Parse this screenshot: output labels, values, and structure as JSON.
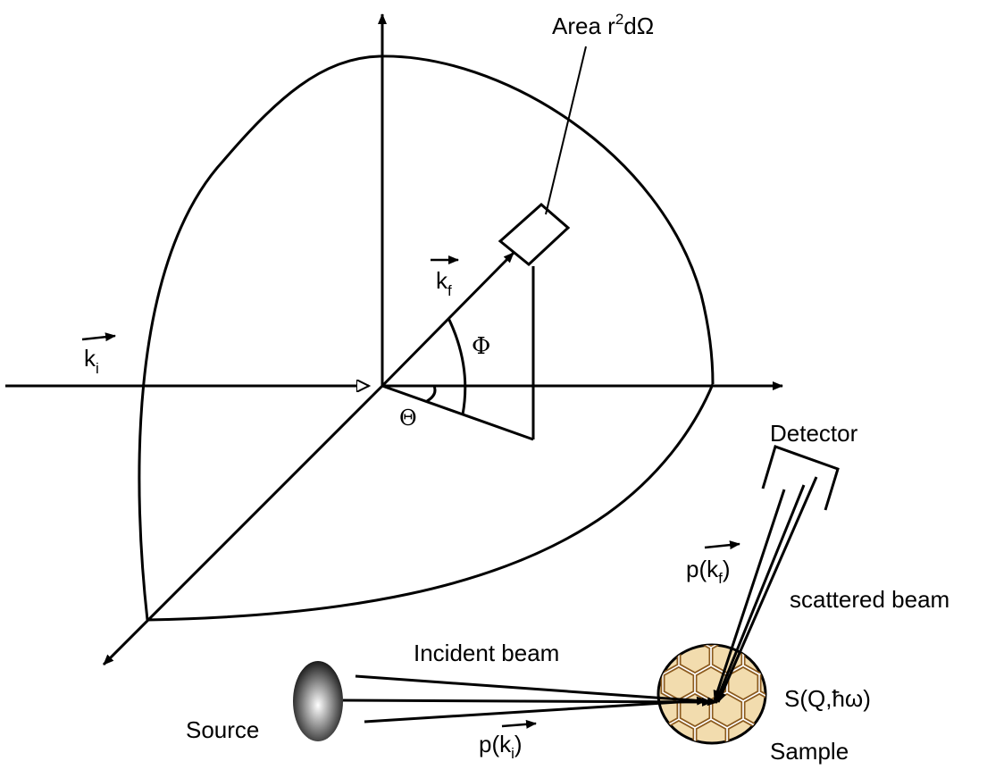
{
  "labels": {
    "area": "Area r",
    "area_sup": "2",
    "area_tail": "dΩ",
    "kf_base": "k",
    "kf_sub": "f",
    "ki_base": "k",
    "ki_sub": "i",
    "phi": "Φ",
    "theta": "Θ",
    "detector": "Detector",
    "p_kf_prefix": "p(",
    "p_kf_base": "k",
    "p_kf_sub": "f",
    "p_kf_suffix": ")",
    "scattered_beam": "scattered beam",
    "incident_beam": "Incident beam",
    "s_q_prefix": "S(Q,",
    "s_q_hbar": "ħ",
    "s_q_suffix": "ω)",
    "source": "Source",
    "p_ki_prefix": "p(",
    "p_ki_base": "k",
    "p_ki_sub": "i",
    "p_ki_suffix": ")",
    "sample": "Sample"
  },
  "colors": {
    "line": "#000000",
    "hex_outer": "#8b5a1e",
    "hex_inner": "#e0a030",
    "sample_fill": "#f2dcae"
  }
}
